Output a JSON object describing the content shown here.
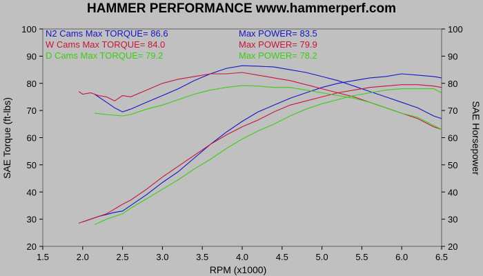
{
  "chart_data": {
    "type": "line",
    "title": "HAMMER PERFORMANCE www.hammerperf.com",
    "xlabel": "RPM (x1000)",
    "ylabel_left": "SAE Torque (ft-lbs)",
    "ylabel_right": "SAE Horsepower",
    "xlim": [
      1.5,
      6.5
    ],
    "ylim": [
      20,
      100
    ],
    "xticks": [
      "1.5",
      "2.0",
      "2.5",
      "3.0",
      "3.5",
      "4.0",
      "4.5",
      "5.0",
      "5.5",
      "6.0",
      "6.5"
    ],
    "yticks": [
      "20",
      "30",
      "40",
      "50",
      "60",
      "70",
      "80",
      "90",
      "100"
    ],
    "grid": false,
    "legend_position": "top-left",
    "legend": [
      {
        "torque_text": "N2 Cams  Max TORQUE= 86.6",
        "power_text": "Max POWER= 83.5",
        "color": "#1414c8"
      },
      {
        "torque_text": "W Cams  Max TORQUE= 84.0",
        "power_text": "Max POWER= 79.9",
        "color": "#c8143c"
      },
      {
        "torque_text": "D Cams  Max TORQUE= 79.2",
        "power_text": "Max POWER= 78.2",
        "color": "#3ccc14"
      }
    ],
    "series": [
      {
        "name": "N2 Cams",
        "measure": "torque",
        "color": "#1414c8",
        "x": [
          2.15,
          2.3,
          2.4,
          2.5,
          2.6,
          2.8,
          3.0,
          3.2,
          3.4,
          3.6,
          3.8,
          4.0,
          4.2,
          4.4,
          4.6,
          4.8,
          5.0,
          5.2,
          5.4,
          5.6,
          5.8,
          6.0,
          6.2,
          6.4,
          6.5
        ],
        "y": [
          76,
          73,
          71,
          69.5,
          70.5,
          73,
          75.5,
          78,
          81,
          83.5,
          85.5,
          86.5,
          86.3,
          86,
          85,
          84,
          82.5,
          81,
          79,
          77,
          75,
          73,
          71,
          68,
          67
        ]
      },
      {
        "name": "N2 Cams",
        "measure": "power",
        "color": "#1414c8",
        "x": [
          2.0,
          2.2,
          2.4,
          2.5,
          2.6,
          2.8,
          3.0,
          3.2,
          3.4,
          3.6,
          3.8,
          4.0,
          4.2,
          4.4,
          4.6,
          4.8,
          5.0,
          5.2,
          5.4,
          5.6,
          5.8,
          6.0,
          6.2,
          6.4,
          6.5
        ],
        "y": [
          29,
          31,
          32.5,
          33,
          35,
          39,
          43.5,
          47.5,
          52.5,
          57.5,
          62,
          66,
          69.5,
          72,
          74.5,
          76.5,
          78.5,
          80,
          81,
          82,
          82.5,
          83.5,
          83,
          82.5,
          82
        ]
      },
      {
        "name": "W Cams",
        "measure": "torque",
        "color": "#c8143c",
        "x": [
          1.95,
          2.0,
          2.1,
          2.2,
          2.3,
          2.4,
          2.5,
          2.6,
          2.8,
          3.0,
          3.2,
          3.4,
          3.6,
          3.8,
          4.0,
          4.2,
          4.4,
          4.6,
          4.8,
          5.0,
          5.2,
          5.4,
          5.6,
          5.8,
          6.0,
          6.2,
          6.4,
          6.5
        ],
        "y": [
          77,
          76,
          76.5,
          75.5,
          75,
          73.5,
          75.5,
          75,
          77.5,
          80,
          81.5,
          82.5,
          83.5,
          83.5,
          84,
          83,
          82,
          81,
          79.5,
          78,
          76.5,
          75,
          73,
          71,
          69,
          67,
          64,
          63
        ]
      },
      {
        "name": "W Cams",
        "measure": "power",
        "color": "#c8143c",
        "x": [
          1.95,
          2.1,
          2.3,
          2.5,
          2.6,
          2.8,
          3.0,
          3.2,
          3.4,
          3.6,
          3.8,
          4.0,
          4.2,
          4.4,
          4.6,
          4.8,
          5.0,
          5.2,
          5.4,
          5.6,
          5.8,
          6.0,
          6.2,
          6.4,
          6.5
        ],
        "y": [
          28.5,
          30,
          32,
          35.5,
          37,
          41,
          45.5,
          49.5,
          53.5,
          57.5,
          61,
          64,
          66.5,
          69.5,
          72,
          73.5,
          75,
          76.5,
          77.5,
          78.5,
          79,
          79.5,
          79.5,
          79,
          78.5
        ]
      },
      {
        "name": "D Cams",
        "measure": "torque",
        "color": "#3ccc14",
        "x": [
          2.15,
          2.3,
          2.5,
          2.6,
          2.8,
          3.0,
          3.2,
          3.4,
          3.6,
          3.8,
          4.0,
          4.2,
          4.4,
          4.6,
          4.8,
          5.0,
          5.2,
          5.4,
          5.6,
          5.8,
          6.0,
          6.2,
          6.4,
          6.5
        ],
        "y": [
          69,
          68.5,
          68,
          68.5,
          70.5,
          72,
          74,
          76,
          77.5,
          78.5,
          79.2,
          79,
          78.5,
          78.5,
          77.5,
          76.5,
          75.5,
          74.5,
          73,
          71,
          69,
          67.5,
          64.5,
          63
        ]
      },
      {
        "name": "D Cams",
        "measure": "power",
        "color": "#3ccc14",
        "x": [
          2.15,
          2.3,
          2.5,
          2.6,
          2.8,
          3.0,
          3.2,
          3.4,
          3.6,
          3.8,
          4.0,
          4.2,
          4.4,
          4.6,
          4.8,
          5.0,
          5.2,
          5.4,
          5.6,
          5.8,
          6.0,
          6.2,
          6.4,
          6.5
        ],
        "y": [
          28,
          30,
          32,
          34,
          37.5,
          41,
          44.5,
          48.5,
          52,
          56,
          59.5,
          62.5,
          65,
          68,
          70.5,
          72.5,
          74,
          75.5,
          76.5,
          77.5,
          78,
          78,
          78,
          76.5
        ]
      }
    ]
  }
}
